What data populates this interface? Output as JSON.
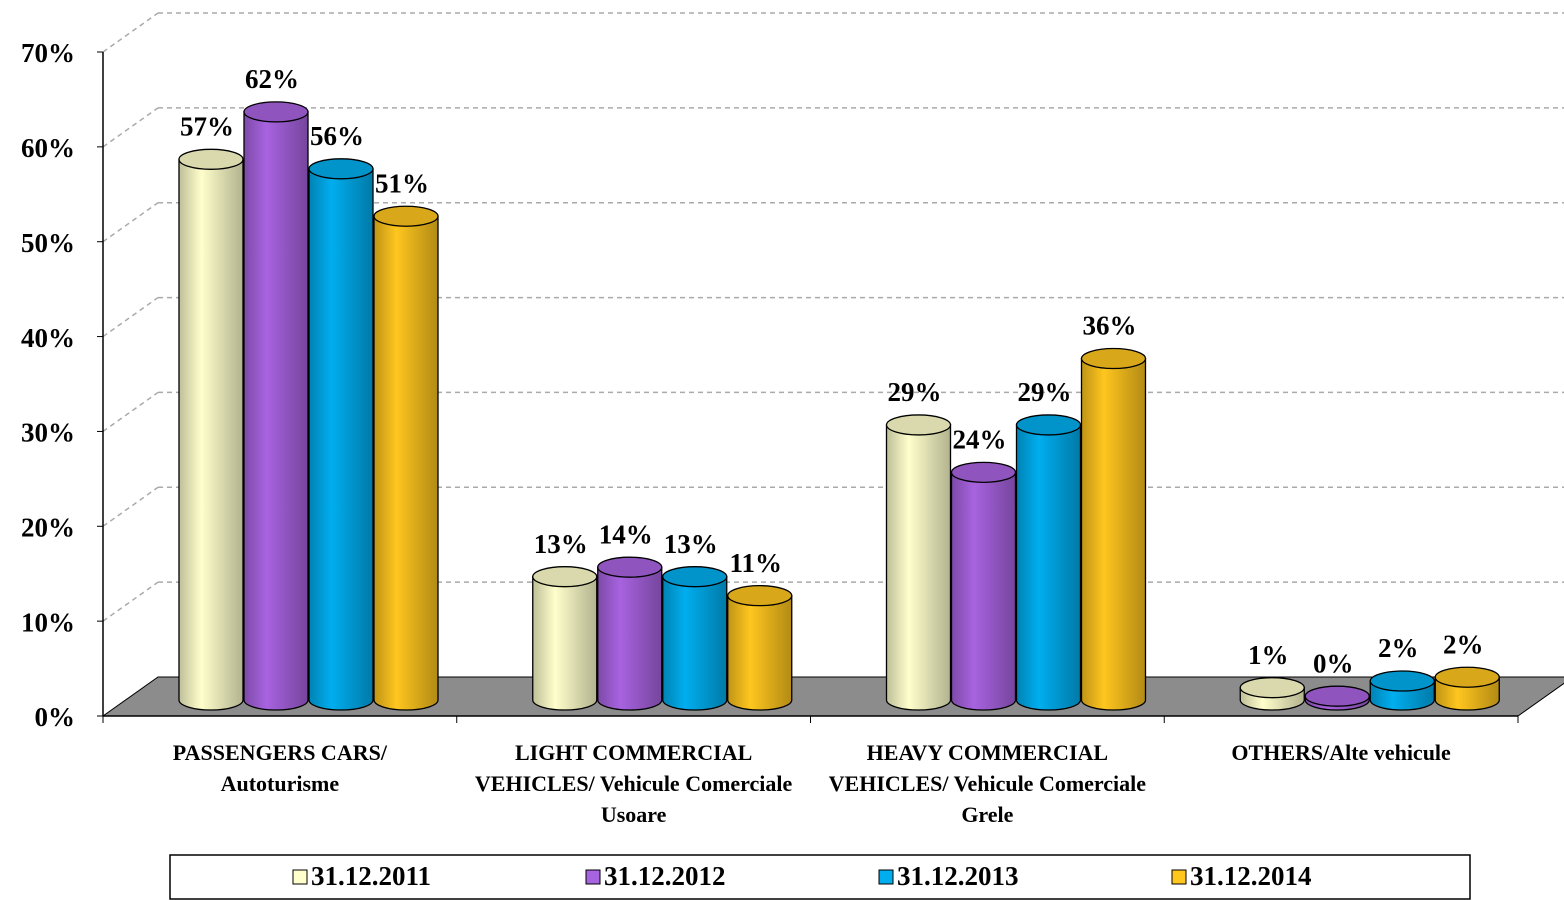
{
  "chart_data": {
    "type": "bar3d",
    "categories": [
      "PASSENGERS CARS/ Autoturisme",
      "LIGHT COMMERCIAL VEHICLES/ Vehicule Comerciale Usoare",
      "HEAVY COMMERCIAL VEHICLES/ Vehicule Comerciale Grele",
      "OTHERS/Alte vehicule"
    ],
    "series": [
      {
        "name": "31.12.2011",
        "color": "#ffffcc",
        "values": [
          57,
          13,
          29,
          1.3
        ],
        "value_labels": [
          "57%",
          "13%",
          "29%",
          "1%"
        ]
      },
      {
        "name": "31.12.2012",
        "color": "#a863e0",
        "values": [
          62,
          14,
          24,
          0.4
        ],
        "value_labels": [
          "62%",
          "14%",
          "24%",
          "0%"
        ]
      },
      {
        "name": "31.12.2013",
        "color": "#00aeef",
        "values": [
          56,
          13,
          29,
          2
        ],
        "value_labels": [
          "56%",
          "13%",
          "29%",
          "2%"
        ]
      },
      {
        "name": "31.12.2014",
        "color": "#ffc61e",
        "values": [
          51,
          11,
          36,
          2.4
        ],
        "value_labels": [
          "51%",
          "11%",
          "36%",
          "2%"
        ]
      }
    ],
    "ylim": [
      0,
      70
    ],
    "yticks": [
      {
        "value": 0,
        "label": "0%"
      },
      {
        "value": 10,
        "label": "10%"
      },
      {
        "value": 20,
        "label": "20%"
      },
      {
        "value": 30,
        "label": "30%"
      },
      {
        "value": 40,
        "label": "40%"
      },
      {
        "value": 50,
        "label": "50%"
      },
      {
        "value": 60,
        "label": "60%"
      },
      {
        "value": 70,
        "label": "70%"
      }
    ],
    "grid": true,
    "legend": "bottom"
  }
}
